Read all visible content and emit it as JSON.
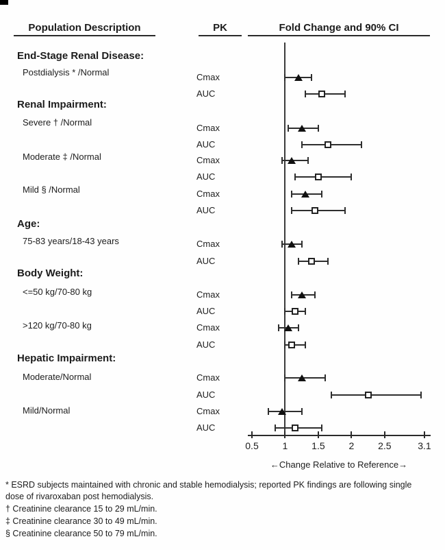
{
  "header": {
    "population_col": "Population Description",
    "pk_col": "PK",
    "fold_change_col": "Fold Change and 90% CI"
  },
  "chart_data": {
    "type": "forest",
    "title": "Fold Change and 90% CI",
    "xlabel": "←Change Relative to Reference→",
    "xlim": [
      0.5,
      3.1
    ],
    "x_tick_values": [
      0.5,
      1,
      1.5,
      2,
      2.5,
      3.1
    ],
    "x_tick_labels": [
      "0.5",
      "1",
      "1.5",
      "2",
      "2.5",
      "3.1"
    ],
    "reference_line": 1,
    "marker_legend": {
      "Cmax": "filled-triangle",
      "AUC": "open-square"
    },
    "sections": [
      {
        "heading": "End-Stage Renal Disease:",
        "items": [
          {
            "label": "Postdialysis * /Normal",
            "measures": [
              {
                "pk": "Cmax",
                "value": 1.2,
                "ci_low": 1.0,
                "ci_high": 1.4
              },
              {
                "pk": "AUC",
                "value": 1.55,
                "ci_low": 1.3,
                "ci_high": 1.9
              }
            ]
          }
        ]
      },
      {
        "heading": "Renal Impairment:",
        "items": [
          {
            "label": "Severe † /Normal",
            "measures": [
              {
                "pk": "Cmax",
                "value": 1.25,
                "ci_low": 1.05,
                "ci_high": 1.5
              },
              {
                "pk": "AUC",
                "value": 1.65,
                "ci_low": 1.25,
                "ci_high": 2.15
              }
            ]
          },
          {
            "label": "Moderate ‡ /Normal",
            "measures": [
              {
                "pk": "Cmax",
                "value": 1.1,
                "ci_low": 0.95,
                "ci_high": 1.35
              },
              {
                "pk": "AUC",
                "value": 1.5,
                "ci_low": 1.15,
                "ci_high": 2.0
              }
            ]
          },
          {
            "label": "Mild § /Normal",
            "measures": [
              {
                "pk": "Cmax",
                "value": 1.3,
                "ci_low": 1.1,
                "ci_high": 1.55
              },
              {
                "pk": "AUC",
                "value": 1.45,
                "ci_low": 1.1,
                "ci_high": 1.9
              }
            ]
          }
        ]
      },
      {
        "heading": "Age:",
        "items": [
          {
            "label": "75-83 years/18-43 years",
            "measures": [
              {
                "pk": "Cmax",
                "value": 1.1,
                "ci_low": 0.95,
                "ci_high": 1.25
              },
              {
                "pk": "AUC",
                "value": 1.4,
                "ci_low": 1.2,
                "ci_high": 1.65
              }
            ]
          }
        ]
      },
      {
        "heading": "Body Weight:",
        "items": [
          {
            "label": "<=50 kg/70-80 kg",
            "measures": [
              {
                "pk": "Cmax",
                "value": 1.25,
                "ci_low": 1.1,
                "ci_high": 1.45
              },
              {
                "pk": "AUC",
                "value": 1.15,
                "ci_low": 1.0,
                "ci_high": 1.3
              }
            ]
          },
          {
            "label": ">120 kg/70-80 kg",
            "measures": [
              {
                "pk": "Cmax",
                "value": 1.05,
                "ci_low": 0.9,
                "ci_high": 1.2
              },
              {
                "pk": "AUC",
                "value": 1.1,
                "ci_low": 1.0,
                "ci_high": 1.3
              }
            ]
          }
        ]
      },
      {
        "heading": "Hepatic Impairment:",
        "items": [
          {
            "label": "Moderate/Normal",
            "measures": [
              {
                "pk": "Cmax",
                "value": 1.25,
                "ci_low": 1.0,
                "ci_high": 1.6
              },
              {
                "pk": "AUC",
                "value": 2.25,
                "ci_low": 1.7,
                "ci_high": 3.05
              }
            ]
          },
          {
            "label": "Mild/Normal",
            "measures": [
              {
                "pk": "Cmax",
                "value": 0.95,
                "ci_low": 0.75,
                "ci_high": 1.25
              },
              {
                "pk": "AUC",
                "value": 1.15,
                "ci_low": 0.85,
                "ci_high": 1.55
              }
            ]
          }
        ]
      }
    ]
  },
  "footnotes": [
    "* ESRD subjects maintained with chronic and stable hemodialysis; reported PK findings are following single dose of rivaroxaban post hemodialysis.",
    "† Creatinine clearance 15 to 29 mL/min.",
    "‡ Creatinine clearance 30 to 49 mL/min.",
    "§ Creatinine clearance 50 to 79 mL/min."
  ]
}
